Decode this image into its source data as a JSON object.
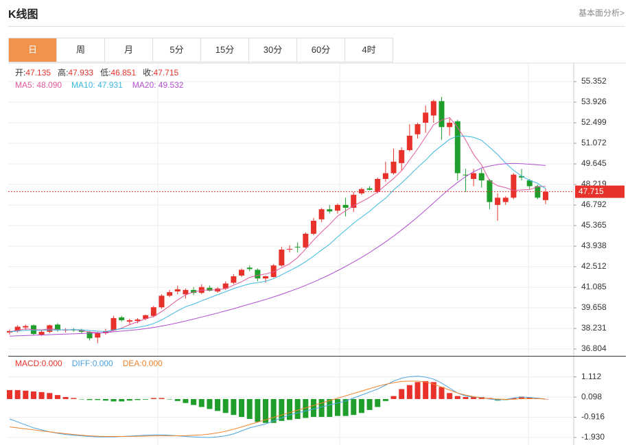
{
  "header": {
    "title": "K线图",
    "link": "基本面分析>"
  },
  "tabs": [
    "日",
    "周",
    "月",
    "5分",
    "15分",
    "30分",
    "60分",
    "4时"
  ],
  "info": [
    {
      "label": "开:",
      "value": "47.135"
    },
    {
      "label": "高:",
      "value": "47.933"
    },
    {
      "label": "低:",
      "value": "46.851"
    },
    {
      "label": "收:",
      "value": "47.715"
    }
  ],
  "chart_data": [
    {
      "type": "candlestick",
      "up_color": "#e8312a",
      "down_color": "#1f9e2c",
      "candles": [
        [
          37.95,
          38.15,
          37.8,
          38.05
        ],
        [
          38.05,
          38.45,
          37.95,
          38.35
        ],
        [
          38.3,
          38.5,
          38.1,
          38.4
        ],
        [
          38.45,
          38.5,
          37.75,
          37.85
        ],
        [
          37.8,
          38.1,
          37.7,
          38.0
        ],
        [
          38.0,
          38.5,
          37.9,
          38.45
        ],
        [
          38.5,
          38.6,
          38.0,
          38.1
        ],
        [
          38.1,
          38.25,
          37.95,
          38.15
        ],
        [
          38.15,
          38.25,
          38.0,
          38.1
        ],
        [
          38.1,
          38.2,
          37.9,
          38.0
        ],
        [
          38.0,
          38.05,
          37.4,
          37.55
        ],
        [
          37.6,
          38.0,
          37.2,
          37.9
        ],
        [
          37.9,
          38.2,
          37.8,
          38.05
        ],
        [
          38.1,
          39.1,
          38.05,
          38.95
        ],
        [
          39.0,
          39.1,
          38.7,
          38.8
        ],
        [
          38.7,
          38.9,
          38.5,
          38.8
        ],
        [
          38.75,
          38.95,
          38.6,
          38.85
        ],
        [
          38.9,
          39.2,
          38.8,
          39.15
        ],
        [
          39.1,
          39.8,
          39.0,
          39.7
        ],
        [
          39.7,
          40.6,
          39.6,
          40.5
        ],
        [
          40.5,
          40.9,
          40.4,
          40.75
        ],
        [
          40.8,
          41.2,
          40.6,
          40.95
        ],
        [
          40.6,
          41.0,
          40.3,
          40.9
        ],
        [
          40.9,
          41.1,
          40.55,
          40.7
        ],
        [
          40.7,
          41.3,
          40.6,
          41.1
        ],
        [
          41.05,
          41.2,
          40.8,
          40.85
        ],
        [
          40.8,
          41.1,
          40.7,
          41.0
        ],
        [
          41.0,
          41.5,
          40.9,
          41.35
        ],
        [
          41.4,
          42.0,
          41.3,
          41.85
        ],
        [
          41.9,
          42.4,
          41.8,
          42.3
        ],
        [
          42.45,
          42.6,
          42.2,
          42.35
        ],
        [
          42.3,
          42.4,
          41.5,
          41.7
        ],
        [
          41.7,
          41.9,
          41.4,
          41.85
        ],
        [
          41.8,
          42.7,
          41.75,
          42.6
        ],
        [
          42.6,
          43.9,
          42.5,
          43.7
        ],
        [
          43.7,
          44.0,
          43.5,
          43.75
        ],
        [
          43.9,
          44.2,
          43.5,
          43.85
        ],
        [
          43.85,
          44.9,
          43.8,
          44.8
        ],
        [
          44.8,
          45.9,
          44.7,
          45.7
        ],
        [
          45.8,
          46.6,
          45.6,
          46.5
        ],
        [
          46.5,
          46.8,
          46.2,
          46.35
        ],
        [
          46.4,
          46.9,
          46.2,
          46.8
        ],
        [
          46.8,
          47.3,
          46.0,
          46.6
        ],
        [
          46.6,
          47.7,
          46.3,
          47.5
        ],
        [
          47.6,
          48.0,
          47.5,
          47.9
        ],
        [
          47.95,
          48.1,
          47.8,
          47.85
        ],
        [
          47.7,
          48.7,
          47.6,
          48.6
        ],
        [
          48.6,
          49.8,
          48.4,
          49.0
        ],
        [
          49.0,
          50.7,
          48.9,
          49.8
        ],
        [
          49.7,
          50.8,
          49.2,
          50.6
        ],
        [
          50.6,
          52.4,
          50.5,
          51.6
        ],
        [
          51.7,
          52.5,
          51.4,
          52.4
        ],
        [
          52.5,
          53.7,
          51.8,
          53.2
        ],
        [
          53.0,
          54.1,
          52.5,
          54.0
        ],
        [
          54.0,
          54.3,
          51.3,
          52.2
        ],
        [
          52.2,
          52.8,
          51.6,
          52.5
        ],
        [
          52.6,
          52.7,
          48.5,
          49.0
        ],
        [
          48.9,
          49.3,
          47.7,
          48.85
        ],
        [
          48.6,
          49.3,
          48.1,
          49.0
        ],
        [
          49.0,
          49.3,
          48.0,
          48.5
        ],
        [
          48.5,
          48.6,
          46.5,
          47.0
        ],
        [
          46.8,
          47.6,
          45.7,
          47.3
        ],
        [
          47.0,
          47.4,
          46.8,
          47.3
        ],
        [
          47.3,
          49.0,
          47.2,
          48.9
        ],
        [
          48.8,
          49.3,
          48.5,
          48.7
        ],
        [
          48.5,
          48.6,
          47.9,
          48.1
        ],
        [
          48.1,
          48.2,
          47.2,
          47.3
        ],
        [
          47.135,
          47.933,
          46.851,
          47.715
        ]
      ],
      "series": [
        {
          "name": "MA5: 48.090",
          "color": "#e0589a",
          "values": [
            38.0,
            38.1,
            38.2,
            38.15,
            38.13,
            38.2,
            38.16,
            38.11,
            38.16,
            38.08,
            37.98,
            37.94,
            37.92,
            38.09,
            38.25,
            38.5,
            38.69,
            38.91,
            39.06,
            39.4,
            39.79,
            40.21,
            40.56,
            40.76,
            40.88,
            40.9,
            40.91,
            41.0,
            41.23,
            41.47,
            41.77,
            41.91,
            42.01,
            42.16,
            42.44,
            42.72,
            43.15,
            43.74,
            44.36,
            44.92,
            45.44,
            46.03,
            46.39,
            46.75,
            47.03,
            47.33,
            47.69,
            48.17,
            48.63,
            49.17,
            49.92,
            50.68,
            51.52,
            52.36,
            52.68,
            52.86,
            52.18,
            51.31,
            50.31,
            49.57,
            48.47,
            48.13,
            48.0,
            47.8,
            47.84,
            47.86,
            48.06,
            48.09
          ]
        },
        {
          "name": "MA10: 47.931",
          "color": "#3ab8e0",
          "values": [
            38.0,
            38.05,
            38.1,
            38.1,
            38.1,
            38.12,
            38.13,
            38.14,
            38.15,
            38.14,
            38.09,
            38.05,
            38.02,
            38.13,
            38.21,
            38.24,
            38.31,
            38.41,
            38.57,
            38.82,
            39.14,
            39.45,
            39.74,
            39.92,
            40.15,
            40.36,
            40.57,
            40.78,
            40.99,
            41.17,
            41.33,
            41.41,
            41.5,
            41.69,
            41.95,
            42.24,
            42.52,
            42.86,
            43.25,
            43.67,
            44.07,
            44.58,
            45.05,
            45.54,
            45.95,
            46.36,
            46.84,
            47.26,
            47.84,
            48.32,
            48.85,
            49.4,
            49.9,
            50.47,
            50.91,
            51.35,
            51.58,
            51.57,
            51.49,
            51.28,
            50.8,
            50.3,
            49.7,
            49.2,
            48.8,
            48.5,
            48.3,
            47.931
          ]
        },
        {
          "name": "MA20: 49.532",
          "color": "#b04ed0",
          "values": [
            37.7,
            37.72,
            37.74,
            37.76,
            37.78,
            37.8,
            37.82,
            37.84,
            37.86,
            37.88,
            37.9,
            37.92,
            37.95,
            38.0,
            38.05,
            38.1,
            38.15,
            38.22,
            38.3,
            38.4,
            38.5,
            38.62,
            38.75,
            38.88,
            39.02,
            39.16,
            39.3,
            39.45,
            39.6,
            39.76,
            39.92,
            40.08,
            40.24,
            40.42,
            40.6,
            40.8,
            41.0,
            41.22,
            41.45,
            41.7,
            41.96,
            42.24,
            42.53,
            42.84,
            43.16,
            43.5,
            43.86,
            44.24,
            44.64,
            45.06,
            45.5,
            45.96,
            46.44,
            46.94,
            47.44,
            47.92,
            48.36,
            48.76,
            49.1,
            49.36,
            49.5,
            49.6,
            49.66,
            49.68,
            49.66,
            49.62,
            49.58,
            49.532
          ]
        }
      ],
      "ylim": [
        36.33,
        56.59
      ],
      "yticks": [
        55.352,
        53.926,
        52.499,
        51.072,
        49.645,
        48.219,
        46.792,
        45.365,
        43.938,
        42.512,
        41.085,
        39.658,
        38.231,
        36.804
      ],
      "grid": true,
      "current_price": 47.715,
      "current_color": "#e8312a"
    },
    {
      "type": "macd",
      "up_color": "#e8312a",
      "down_color": "#1f9e2c",
      "histogram": {
        "name": "MACD:0.000",
        "color": "#e8312a",
        "values": [
          0.45,
          0.45,
          0.42,
          0.38,
          0.35,
          0.3,
          0.2,
          0.1,
          0.05,
          -0.02,
          -0.05,
          -0.05,
          -0.08,
          -0.12,
          -0.12,
          -0.08,
          -0.05,
          -0.03,
          0.05,
          0.05,
          -0.02,
          -0.1,
          -0.2,
          -0.3,
          -0.4,
          -0.5,
          -0.6,
          -0.7,
          -0.8,
          -0.9,
          -1.0,
          -1.15,
          -1.2,
          -1.2,
          -1.1,
          -1.05,
          -1.0,
          -0.95,
          -0.9,
          -0.9,
          -0.9,
          -0.85,
          -0.85,
          -0.8,
          -0.7,
          -0.55,
          -0.4,
          -0.1,
          0.15,
          0.5,
          0.7,
          0.85,
          0.9,
          0.85,
          0.6,
          0.3,
          0.15,
          0.1,
          0.1,
          0.1,
          0.05,
          -0.08,
          -0.05,
          0.05,
          0.12,
          0.08,
          0.02,
          0.0
        ]
      },
      "series": [
        {
          "name": "DIFF:0.000",
          "color": "#4aa3df",
          "values": [
            -1.0,
            -1.15,
            -1.3,
            -1.45,
            -1.55,
            -1.65,
            -1.72,
            -1.78,
            -1.82,
            -1.85,
            -1.88,
            -1.9,
            -1.9,
            -1.9,
            -1.88,
            -1.86,
            -1.84,
            -1.82,
            -1.8,
            -1.8,
            -1.82,
            -1.85,
            -1.88,
            -1.9,
            -1.92,
            -1.93,
            -1.9,
            -1.85,
            -1.75,
            -1.6,
            -1.45,
            -1.35,
            -1.25,
            -1.1,
            -0.95,
            -0.8,
            -0.7,
            -0.6,
            -0.5,
            -0.4,
            -0.3,
            -0.2,
            -0.1,
            0.05,
            0.2,
            0.35,
            0.5,
            0.7,
            0.9,
            1.05,
            1.12,
            1.15,
            1.1,
            1.0,
            0.8,
            0.55,
            0.3,
            0.15,
            0.1,
            0.08,
            0.0,
            -0.05,
            -0.02,
            0.05,
            0.1,
            0.08,
            0.04,
            0.0
          ]
        },
        {
          "name": "DEA:0.000",
          "color": "#f0822a",
          "values": [
            -1.4,
            -1.45,
            -1.5,
            -1.55,
            -1.6,
            -1.65,
            -1.7,
            -1.74,
            -1.78,
            -1.82,
            -1.85,
            -1.87,
            -1.88,
            -1.88,
            -1.88,
            -1.88,
            -1.87,
            -1.86,
            -1.85,
            -1.85,
            -1.85,
            -1.85,
            -1.84,
            -1.82,
            -1.8,
            -1.76,
            -1.7,
            -1.62,
            -1.52,
            -1.4,
            -1.28,
            -1.16,
            -1.04,
            -0.92,
            -0.8,
            -0.68,
            -0.56,
            -0.44,
            -0.32,
            -0.2,
            -0.08,
            0.04,
            0.16,
            0.28,
            0.4,
            0.52,
            0.64,
            0.74,
            0.82,
            0.88,
            0.9,
            0.9,
            0.85,
            0.75,
            0.6,
            0.45,
            0.3,
            0.2,
            0.12,
            0.06,
            0.02,
            0.0,
            -0.02,
            -0.01,
            0.02,
            0.03,
            0.02,
            0.0
          ]
        }
      ],
      "ylim": [
        -2.31,
        2.1
      ],
      "yticks": [
        1.112,
        0.098,
        -0.916,
        {
          "value": -1.93,
          "label": "-1.930"
        }
      ],
      "grid": true
    }
  ]
}
